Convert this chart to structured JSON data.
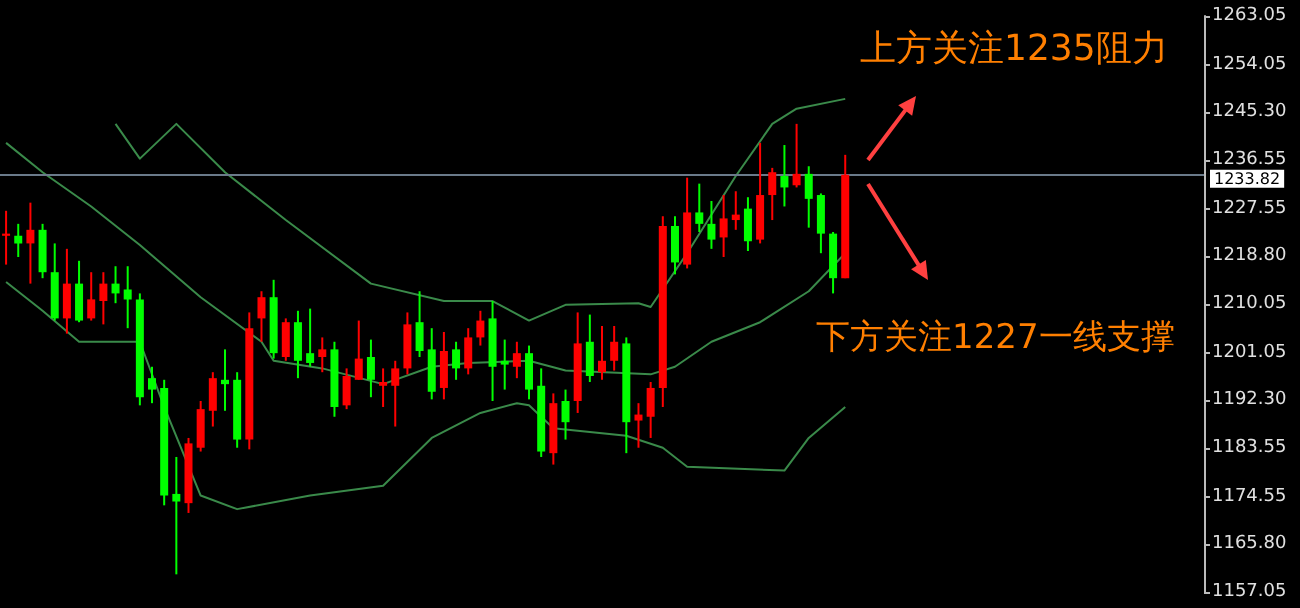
{
  "chart_data": {
    "type": "candlestick",
    "categories": [
      null,
      null,
      null,
      null,
      null,
      null,
      null,
      null,
      null,
      null,
      null,
      null,
      null,
      null,
      null,
      null,
      null,
      null,
      null,
      null,
      null,
      null,
      null,
      null,
      null,
      null,
      null,
      null,
      null,
      null,
      null,
      null,
      null,
      null,
      null,
      null,
      null,
      null,
      null,
      null,
      null,
      null,
      null,
      null,
      null,
      null,
      null,
      null,
      null,
      null,
      null,
      null,
      null,
      null,
      null,
      null,
      null,
      null,
      null,
      null,
      null,
      null,
      null,
      null,
      null,
      null,
      null,
      null,
      null,
      null,
      null,
      null,
      null,
      null,
      null,
      null,
      null,
      null,
      null,
      null,
      null,
      null,
      null,
      null,
      null,
      null,
      null,
      null,
      null,
      null,
      null,
      null,
      null,
      null,
      null,
      null,
      null,
      null,
      null
    ],
    "ohlc": [
      [
        1222.6,
        1227.2,
        1217.3,
        1223.0
      ],
      [
        1222.6,
        1224.8,
        1218.7,
        1221.2
      ],
      [
        1221.2,
        1228.7,
        1213.8,
        1223.7
      ],
      [
        1223.7,
        1224.8,
        1214.8,
        1215.9
      ],
      [
        1215.9,
        1221.2,
        1207.0,
        1207.4
      ],
      [
        1207.4,
        1220.2,
        1204.6,
        1213.8
      ],
      [
        1213.8,
        1218.0,
        1206.7,
        1207.0
      ],
      [
        1207.4,
        1215.9,
        1207.0,
        1210.9
      ],
      [
        1210.6,
        1215.9,
        1206.3,
        1213.8
      ],
      [
        1213.8,
        1217.0,
        1210.2,
        1212.0
      ],
      [
        1212.7,
        1217.0,
        1205.6,
        1210.9
      ],
      [
        1210.9,
        1212.0,
        1191.4,
        1192.9
      ],
      [
        1196.4,
        1198.5,
        1191.8,
        1194.3
      ],
      [
        1194.6,
        1196.1,
        1173.0,
        1174.8
      ],
      [
        1175.1,
        1181.9,
        1160.3,
        1173.7
      ],
      [
        1173.4,
        1185.4,
        1171.6,
        1184.4
      ],
      [
        1183.6,
        1192.2,
        1182.9,
        1190.7
      ],
      [
        1190.4,
        1197.5,
        1187.5,
        1196.4
      ],
      [
        1196.1,
        1201.7,
        1190.4,
        1195.3
      ],
      [
        1196.1,
        1197.5,
        1183.6,
        1185.1
      ],
      [
        1185.1,
        1208.5,
        1183.3,
        1205.6
      ],
      [
        1207.4,
        1212.4,
        1203.1,
        1211.3
      ],
      [
        1211.3,
        1214.5,
        1200.0,
        1201.0
      ],
      [
        1200.3,
        1207.4,
        1199.6,
        1206.7
      ],
      [
        1206.7,
        1208.8,
        1196.4,
        1199.6
      ],
      [
        1201.0,
        1209.2,
        1198.5,
        1199.2
      ],
      [
        1200.3,
        1203.9,
        1197.5,
        1201.7
      ],
      [
        1201.7,
        1203.1,
        1189.3,
        1191.1
      ],
      [
        1191.4,
        1198.2,
        1190.7,
        1196.8
      ],
      [
        1196.1,
        1207.0,
        1196.1,
        1200.0
      ],
      [
        1200.3,
        1203.5,
        1192.9,
        1196.1
      ],
      [
        1195.0,
        1198.2,
        1191.1,
        1195.7
      ],
      [
        1195.0,
        1199.6,
        1187.5,
        1198.2
      ],
      [
        1198.2,
        1208.5,
        1197.1,
        1206.3
      ],
      [
        1206.7,
        1212.4,
        1200.3,
        1201.4
      ],
      [
        1201.7,
        1205.6,
        1192.5,
        1193.9
      ],
      [
        1194.6,
        1204.9,
        1192.5,
        1201.4
      ],
      [
        1201.7,
        1203.1,
        1196.1,
        1198.2
      ],
      [
        1198.2,
        1205.6,
        1197.1,
        1203.9
      ],
      [
        1203.9,
        1208.8,
        1202.4,
        1207.0
      ],
      [
        1207.4,
        1210.6,
        1192.2,
        1198.5
      ],
      [
        1199.6,
        1203.5,
        1194.3,
        1198.9
      ],
      [
        1198.5,
        1203.1,
        1196.4,
        1201.0
      ],
      [
        1201.0,
        1202.4,
        1192.5,
        1194.3
      ],
      [
        1195.0,
        1198.2,
        1181.9,
        1182.9
      ],
      [
        1182.6,
        1193.6,
        1180.5,
        1191.8
      ],
      [
        1192.2,
        1194.3,
        1185.1,
        1188.3
      ],
      [
        1192.2,
        1208.5,
        1190.0,
        1202.8
      ],
      [
        1203.1,
        1208.1,
        1195.7,
        1196.8
      ],
      [
        1197.5,
        1206.0,
        1196.1,
        1199.6
      ],
      [
        1199.6,
        1206.0,
        1197.8,
        1203.1
      ],
      [
        1202.8,
        1203.9,
        1182.6,
        1188.3
      ],
      [
        1188.6,
        1191.8,
        1183.6,
        1189.7
      ],
      [
        1189.3,
        1195.7,
        1185.4,
        1194.6
      ],
      [
        1194.6,
        1226.2,
        1191.1,
        1224.4
      ],
      [
        1224.4,
        1226.2,
        1215.5,
        1217.7
      ],
      [
        1217.3,
        1233.3,
        1216.6,
        1226.9
      ],
      [
        1226.9,
        1232.2,
        1223.3,
        1224.8
      ],
      [
        1224.8,
        1229.0,
        1220.2,
        1221.9
      ],
      [
        1222.3,
        1230.1,
        1218.7,
        1225.8
      ],
      [
        1225.5,
        1230.8,
        1223.7,
        1226.5
      ],
      [
        1227.6,
        1229.7,
        1219.8,
        1221.6
      ],
      [
        1221.9,
        1239.7,
        1221.2,
        1230.1
      ],
      [
        1230.1,
        1235.1,
        1225.5,
        1234.3
      ],
      [
        1233.6,
        1239.3,
        1228.0,
        1231.5
      ],
      [
        1231.9,
        1243.2,
        1231.5,
        1234.0
      ],
      [
        1234.0,
        1235.4,
        1224.1,
        1229.4
      ],
      [
        1230.1,
        1230.4,
        1219.4,
        1223.0
      ],
      [
        1223.0,
        1223.3,
        1212.0,
        1214.8
      ],
      [
        1214.8,
        1237.5,
        1214.8,
        1233.82
      ],
      null,
      null,
      null,
      null,
      null,
      null,
      null,
      null,
      null,
      null,
      null,
      null,
      null,
      null,
      null,
      null,
      null,
      null,
      null,
      null,
      null,
      null,
      null,
      null,
      null,
      null,
      null,
      null,
      null
    ],
    "colors": [
      "#ff0000",
      "#00ff00",
      "#ff0000",
      "#00ff00",
      "#00ff00",
      "#ff0000",
      "#00ff00",
      "#ff0000",
      "#ff0000",
      "#00ff00",
      "#00ff00",
      "#00ff00",
      "#00ff00",
      "#00ff00",
      "#00ff00",
      "#ff0000",
      "#ff0000",
      "#ff0000",
      "#00ff00",
      "#00ff00",
      "#ff0000",
      "#ff0000",
      "#00ff00",
      "#ff0000",
      "#00ff00",
      "#00ff00",
      "#ff0000",
      "#00ff00",
      "#ff0000",
      "#ff0000",
      "#00ff00",
      "#ff0000",
      "#ff0000",
      "#ff0000",
      "#00ff00",
      "#00ff00",
      "#ff0000",
      "#00ff00",
      "#ff0000",
      "#ff0000",
      "#00ff00",
      "#00ff00",
      "#ff0000",
      "#00ff00",
      "#00ff00",
      "#ff0000",
      "#00ff00",
      "#ff0000",
      "#00ff00",
      "#ff0000",
      "#ff0000",
      "#00ff00",
      "#ff0000",
      "#ff0000",
      "#ff0000",
      "#00ff00",
      "#ff0000",
      "#00ff00",
      "#00ff00",
      "#ff0000",
      "#ff0000",
      "#00ff00",
      "#ff0000",
      "#ff0000",
      "#00ff00",
      "#ff0000",
      "#00ff00",
      "#00ff00",
      "#00ff00",
      "#ff0000",
      null,
      null,
      null,
      null,
      null,
      null,
      null,
      null,
      null,
      null,
      null,
      null,
      null,
      null,
      null,
      null,
      null,
      null,
      null,
      null,
      null,
      null,
      null,
      null,
      null,
      null,
      null,
      null,
      null
    ],
    "series": [
      {
        "type": "line",
        "color": "#3a8a4a",
        "values": [
          null,
          null,
          null,
          null,
          null,
          null,
          null,
          null,
          null,
          1243.2,
          null,
          1236.8,
          null,
          null,
          1243.2,
          null,
          null,
          null,
          1234.3,
          null,
          null,
          null,
          null,
          1225.5,
          null,
          null,
          null,
          null,
          null,
          null,
          1213.8,
          null,
          null,
          null,
          null,
          null,
          1210.6,
          null,
          null,
          null,
          1210.6,
          null,
          null,
          1207.0,
          null,
          null,
          1209.9,
          null,
          null,
          null,
          null,
          null,
          1210.2,
          1209.5,
          null,
          null,
          1219.4,
          null,
          null,
          null,
          1233.6,
          null,
          null,
          1243.2,
          null,
          1246.0,
          null,
          null,
          null,
          1247.8,
          null,
          null,
          null,
          null,
          null,
          null,
          null,
          null,
          null,
          null,
          null,
          null,
          null,
          null,
          null,
          null,
          null,
          null,
          null,
          null,
          null,
          null,
          null,
          null,
          null,
          null,
          null,
          null,
          null
        ]
      },
      {
        "type": "line",
        "color": "#3a8a4a",
        "values": [
          1239.7,
          null,
          null,
          1234.3,
          null,
          null,
          null,
          1228.0,
          null,
          null,
          null,
          1220.9,
          null,
          null,
          null,
          null,
          1211.3,
          null,
          null,
          null,
          null,
          1203.1,
          1199.6,
          null,
          null,
          null,
          1198.2,
          null,
          null,
          null,
          null,
          1195.3,
          null,
          null,
          null,
          1198.5,
          null,
          null,
          1199.2,
          null,
          null,
          null,
          null,
          1199.6,
          null,
          null,
          1197.8,
          null,
          null,
          null,
          null,
          null,
          null,
          1197.1,
          null,
          1198.5,
          null,
          null,
          1203.1,
          null,
          null,
          null,
          1206.7,
          null,
          null,
          null,
          1212.4,
          null,
          null,
          1219.4,
          null,
          null,
          null,
          null,
          null,
          null,
          null,
          null,
          null,
          null,
          null,
          null,
          null,
          null,
          null,
          null,
          null,
          null,
          null,
          null,
          null,
          null,
          null,
          null,
          null,
          null,
          null,
          null,
          null
        ]
      },
      {
        "type": "line",
        "color": "#3a8a4a",
        "values": [
          1214.1,
          null,
          null,
          1208.8,
          null,
          null,
          1203.1,
          null,
          null,
          null,
          null,
          1203.1,
          null,
          1191.1,
          null,
          null,
          1174.8,
          null,
          null,
          1172.3,
          null,
          null,
          null,
          null,
          null,
          1174.8,
          null,
          null,
          null,
          null,
          null,
          1176.6,
          null,
          null,
          null,
          1185.4,
          null,
          null,
          null,
          1190.0,
          null,
          null,
          1191.8,
          1191.4,
          null,
          1187.2,
          null,
          null,
          null,
          null,
          null,
          1185.8,
          null,
          null,
          1183.6,
          null,
          1180.1,
          null,
          null,
          null,
          null,
          null,
          null,
          null,
          1179.4,
          null,
          1185.4,
          null,
          null,
          1191.1,
          null,
          null,
          null,
          null,
          null,
          null,
          null,
          null,
          null,
          null,
          null,
          null,
          null,
          null,
          null,
          null,
          null,
          null,
          null,
          null,
          null,
          null,
          null,
          null,
          null,
          null,
          null,
          null,
          null
        ]
      }
    ],
    "ylim": [
      1157.05,
      1263.05
    ],
    "yticks": [
      1157.05,
      {
        "value": 1165.8,
        "label": "1165.80"
      },
      1174.55,
      1183.55,
      {
        "value": 1192.3,
        "label": "1192.30"
      },
      1201.05,
      1210.05,
      {
        "value": 1218.8,
        "label": "1218.80"
      },
      1227.55,
      1236.55,
      {
        "value": 1245.3,
        "label": "1245.30"
      },
      1254.05,
      1263.05
    ],
    "ref_lines": [
      {
        "axis": "y",
        "value": 1233.82,
        "label": "1233.82",
        "color": "#6a7a8a"
      }
    ],
    "annotations": [
      "上方关注1235阻力",
      "下方关注1227一线支撑"
    ],
    "grid": false,
    "line_style": "solid"
  }
}
